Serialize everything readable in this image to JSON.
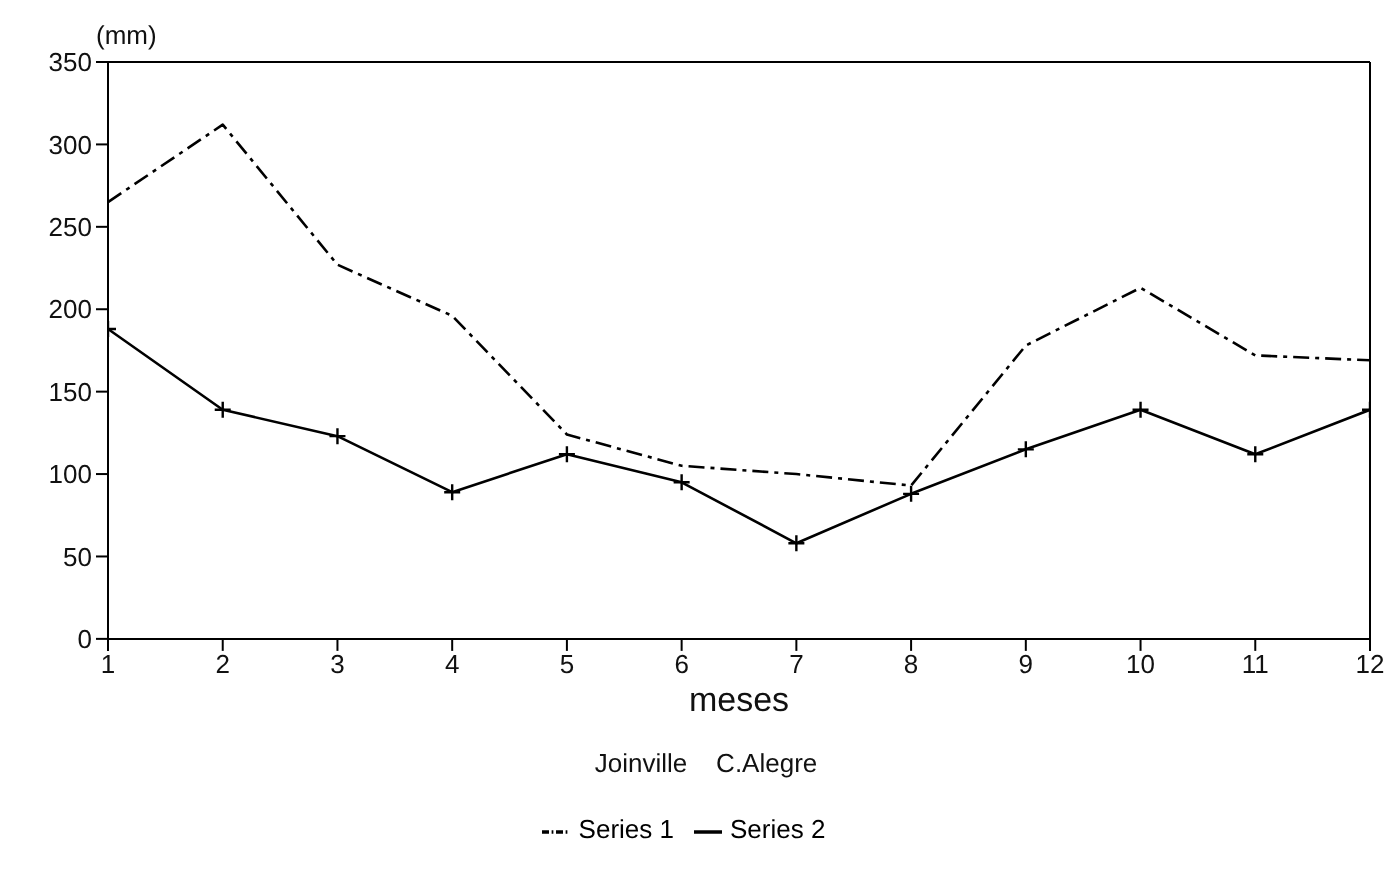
{
  "chart_data": {
    "type": "line",
    "ylabel": "(mm)",
    "xlabel": "meses",
    "legend_title": "Joinville    C.Alegre",
    "x": [
      1,
      2,
      3,
      4,
      5,
      6,
      7,
      8,
      9,
      10,
      11,
      12
    ],
    "xlim": [
      1,
      12
    ],
    "xticks": [
      1,
      2,
      3,
      4,
      5,
      6,
      7,
      8,
      9,
      10,
      11,
      12
    ],
    "ylim": [
      0,
      350
    ],
    "yticks": [
      0,
      50,
      100,
      150,
      200,
      250,
      300,
      350
    ],
    "grid": false,
    "legend": "bottom",
    "series": [
      {
        "name": "Series 1",
        "color": "#000000",
        "line_style": "dashed",
        "marker": "none",
        "values": [
          265,
          312,
          227,
          196,
          124,
          105,
          100,
          93,
          178,
          213,
          172,
          169
        ]
      },
      {
        "name": "Series 2",
        "color": "#000000",
        "line_style": "solid",
        "marker": "cross",
        "values": [
          188,
          139,
          123,
          89,
          112,
          95,
          58,
          88,
          115,
          139,
          112,
          139
        ]
      }
    ]
  }
}
